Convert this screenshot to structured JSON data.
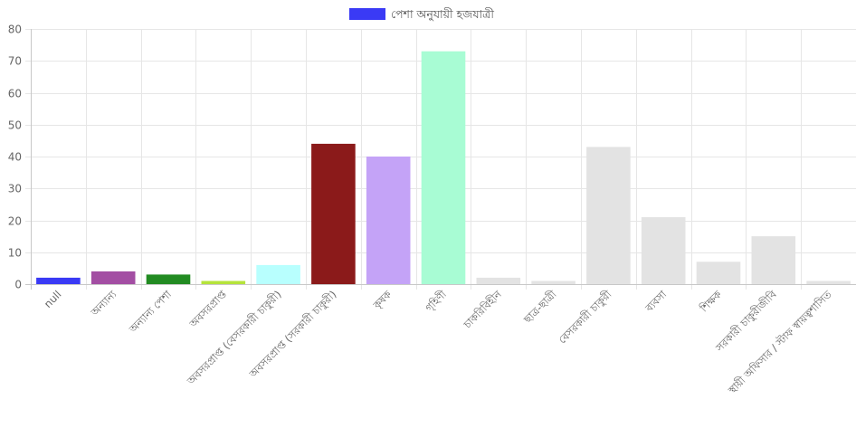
{
  "chart_data": {
    "type": "bar",
    "categories": [
      "null",
      "অন্যান্য",
      "অন্যান্য পেশা",
      "অবসরপ্রাপ্ত",
      "অবসরপ্রাপ্ত (বেসরকারী চাকুরী)",
      "অবসরপ্রাপ্ত (সরকারী চাকুরী)",
      "কৃষক",
      "গৃহিণী",
      "চাকরিবিহীন",
      "ছাত্র-ছাত্রী",
      "বেসরকারী চাকুরী",
      "ব্যবসা",
      "শিক্ষক",
      "সরকারী চাকুরীজীবি",
      "স্থায়ী অফিসার / স্টাফ স্বায়ত্বশাসিত"
    ],
    "series": [
      {
        "name": "পেশা অনুযায়ী হজযাত্রী",
        "values": [
          2,
          4,
          3,
          1,
          6,
          44,
          40,
          73,
          2,
          1,
          43,
          21,
          7,
          15,
          1
        ],
        "colors": [
          "#3a3af5",
          "#a34ea3",
          "#228b22",
          "#b5e33b",
          "#b8fffe",
          "#8b1a1a",
          "#c4a3f7",
          "#a8fcd4",
          "#e3e3e3",
          "#e3e3e3",
          "#e3e3e3",
          "#e3e3e3",
          "#e3e3e3",
          "#e3e3e3",
          "#e3e3e3"
        ],
        "legend_color": "#3a3af5"
      }
    ],
    "ylim": [
      0,
      80
    ],
    "yticks": [
      "0",
      "10",
      "20",
      "30",
      "40",
      "50",
      "60",
      "70",
      "80"
    ],
    "grid": true,
    "legend_position": "top"
  }
}
